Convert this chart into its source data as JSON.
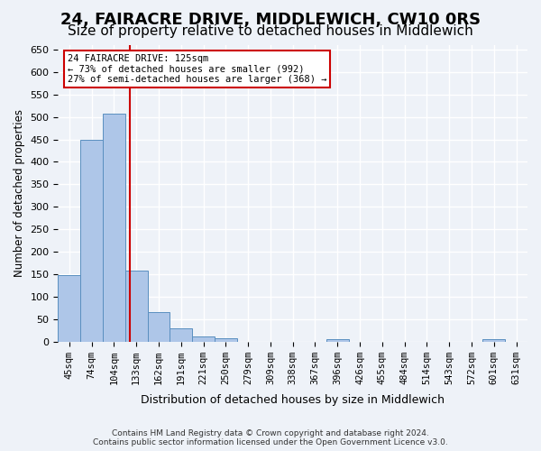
{
  "title1": "24, FAIRACRE DRIVE, MIDDLEWICH, CW10 0RS",
  "title2": "Size of property relative to detached houses in Middlewich",
  "xlabel": "Distribution of detached houses by size in Middlewich",
  "ylabel": "Number of detached properties",
  "categories": [
    "45sqm",
    "74sqm",
    "104sqm",
    "133sqm",
    "162sqm",
    "191sqm",
    "221sqm",
    "250sqm",
    "279sqm",
    "309sqm",
    "338sqm",
    "367sqm",
    "396sqm",
    "426sqm",
    "455sqm",
    "484sqm",
    "514sqm",
    "543sqm",
    "572sqm",
    "601sqm",
    "631sqm"
  ],
  "values": [
    147,
    450,
    507,
    158,
    65,
    30,
    12,
    7,
    0,
    0,
    0,
    0,
    5,
    0,
    0,
    0,
    0,
    0,
    0,
    5,
    0
  ],
  "bar_color": "#aec6e8",
  "bar_edge_color": "#5a8fc0",
  "vline_pos": 2.73,
  "vline_color": "#cc0000",
  "annotation_box_text": "24 FAIRACRE DRIVE: 125sqm\n← 73% of detached houses are smaller (992)\n27% of semi-detached houses are larger (368) →",
  "annotation_box_color": "#cc0000",
  "ylim": [
    0,
    660
  ],
  "yticks": [
    0,
    50,
    100,
    150,
    200,
    250,
    300,
    350,
    400,
    450,
    500,
    550,
    600,
    650
  ],
  "footer_text": "Contains HM Land Registry data © Crown copyright and database right 2024.\nContains public sector information licensed under the Open Government Licence v3.0.",
  "bg_color": "#eef2f8",
  "plot_bg_color": "#eef2f8",
  "grid_color": "#ffffff",
  "title1_fontsize": 13,
  "title2_fontsize": 11
}
